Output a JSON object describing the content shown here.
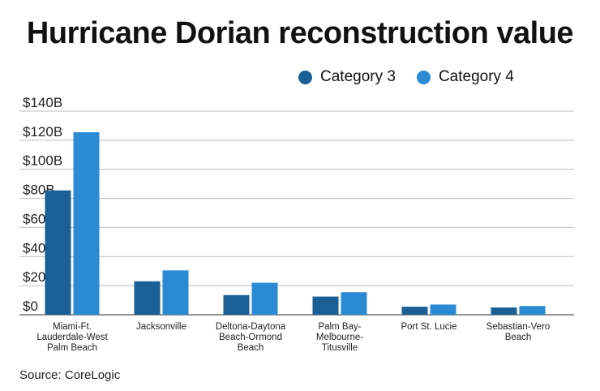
{
  "chart_data": {
    "type": "bar",
    "title": "Hurricane Dorian reconstruction value",
    "xlabel": "",
    "ylabel": "",
    "ylim": [
      0,
      140
    ],
    "y_ticks": [
      "$0",
      "$20B",
      "$40B",
      "$60B",
      "$80B",
      "$100B",
      "$120B",
      "$140B"
    ],
    "y_tick_values": [
      0,
      20,
      40,
      60,
      80,
      100,
      120,
      140
    ],
    "categories": [
      [
        "Miami-Ft.",
        "Lauderdale-West",
        "Palm Beach"
      ],
      [
        "Jacksonville"
      ],
      [
        "Deltona-Daytona",
        "Beach-Ormond",
        "Beach"
      ],
      [
        "Palm Bay-",
        "Melbourne-",
        "Titusville"
      ],
      [
        "Port St. Lucie"
      ],
      [
        "Sebastian-Vero",
        "Beach"
      ]
    ],
    "series": [
      {
        "name": "Category 3",
        "color": "#1a5f96",
        "values": [
          85.5,
          23,
          13.5,
          12.5,
          5.5,
          5
        ]
      },
      {
        "name": "Category 4",
        "color": "#2a8ad4",
        "values": [
          125.5,
          30.5,
          22,
          15.5,
          7,
          6
        ]
      }
    ],
    "grid": true,
    "legend_position": "top-right",
    "source": "Source: CoreLogic"
  }
}
